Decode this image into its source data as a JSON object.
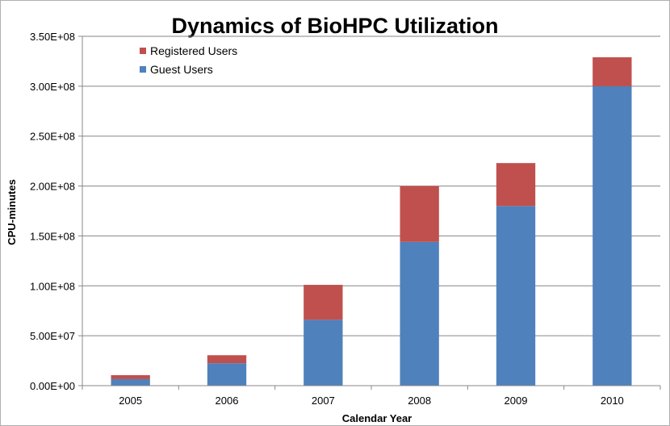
{
  "chart_data": {
    "type": "bar",
    "stacked": true,
    "title": "Dynamics of BioHPC Utilization",
    "xlabel": "Calendar Year",
    "ylabel": "CPU-minutes",
    "categories": [
      "2005",
      "2006",
      "2007",
      "2008",
      "2009",
      "2010"
    ],
    "series": [
      {
        "name": "Guest Users",
        "color": "#4f81bd",
        "values": [
          6500000,
          22500000,
          66000000,
          144000000,
          180000000,
          300000000
        ]
      },
      {
        "name": "Registered Users",
        "color": "#c0504d",
        "values": [
          4000000,
          8000000,
          35000000,
          56000000,
          43000000,
          29000000
        ]
      }
    ],
    "ylim": [
      0,
      350000000
    ],
    "yticks": [
      {
        "value": 0,
        "label": "0.00E+00"
      },
      {
        "value": 50000000,
        "label": "5.00E+07"
      },
      {
        "value": 100000000,
        "label": "1.00E+08"
      },
      {
        "value": 150000000,
        "label": "1.50E+08"
      },
      {
        "value": 200000000,
        "label": "2.00E+08"
      },
      {
        "value": 250000000,
        "label": "2.50E+08"
      },
      {
        "value": 300000000,
        "label": "3.00E+08"
      },
      {
        "value": 350000000,
        "label": "3.50E+08"
      }
    ],
    "grid": true,
    "legend": {
      "placement": "top-left",
      "entries": [
        {
          "name": "Registered Users",
          "color": "#c0504d"
        },
        {
          "name": "Guest Users",
          "color": "#4f81bd"
        }
      ]
    }
  }
}
